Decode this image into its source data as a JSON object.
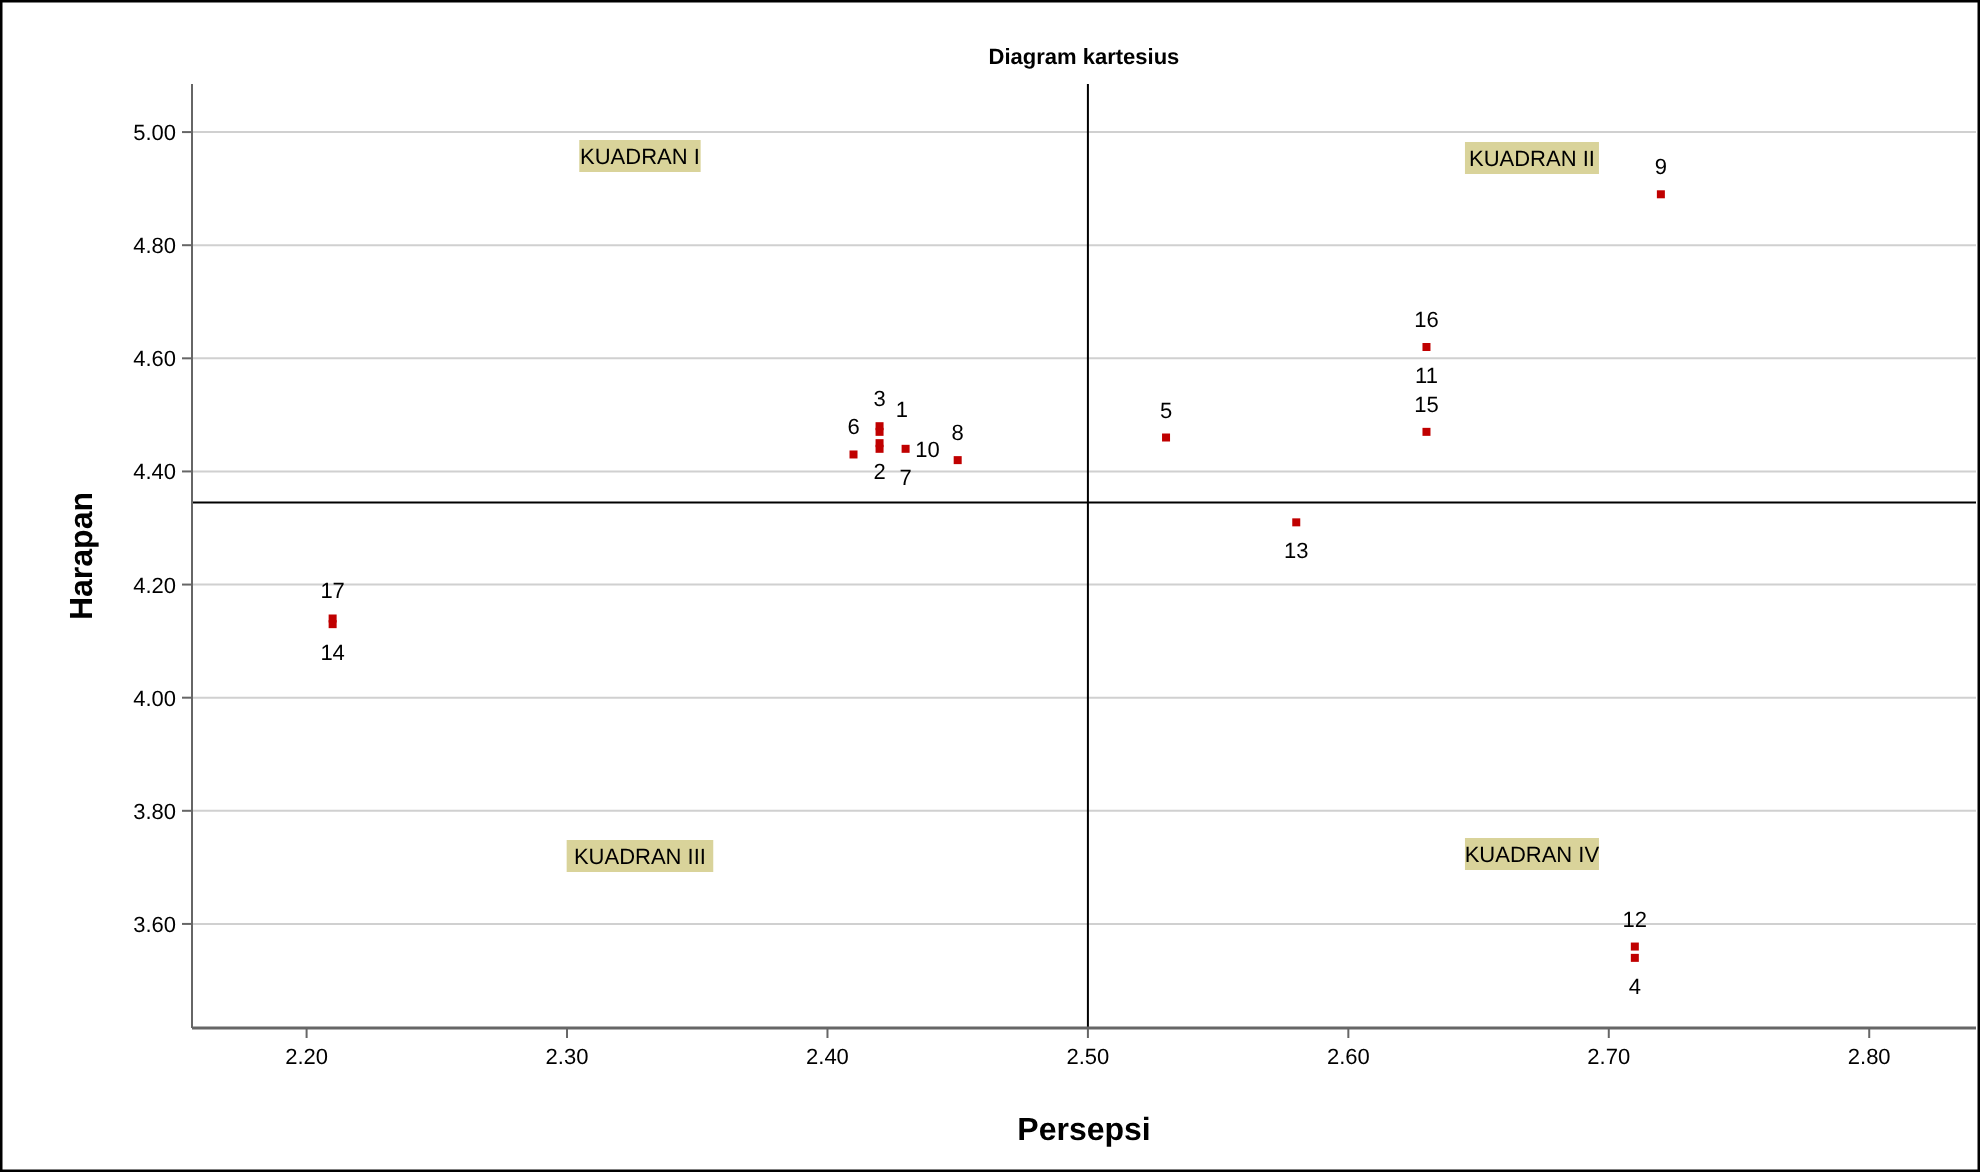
{
  "chart_data": {
    "type": "scatter",
    "title": "Diagram kartesius",
    "xlabel": "Persepsi",
    "ylabel": "Harapan",
    "series": [
      {
        "color": "#c00000",
        "x": [
          2.72,
          2.63,
          2.63,
          2.53,
          2.58,
          2.71,
          2.71,
          2.21,
          2.21,
          2.41,
          2.42,
          2.42,
          2.42,
          2.42,
          2.43,
          2.45
        ],
        "values": [
          4.89,
          4.62,
          4.47,
          4.46,
          4.31,
          3.56,
          3.54,
          4.14,
          4.13,
          4.43,
          4.48,
          4.47,
          4.45,
          4.44,
          4.44,
          4.42
        ]
      }
    ],
    "marker": "square",
    "grid": "y",
    "xlim": [
      2.156,
      2.841
    ],
    "ylim": [
      3.416,
      5.085
    ],
    "xticks": [
      {
        "value": 2.2,
        "label": "2.20"
      },
      {
        "value": 2.3,
        "label": "2.30"
      },
      {
        "value": 2.4,
        "label": "2.40"
      },
      {
        "value": 2.5,
        "label": "2.50"
      },
      {
        "value": 2.6,
        "label": "2.60"
      },
      {
        "value": 2.7,
        "label": "2.70"
      },
      {
        "value": 2.8,
        "label": "2.80"
      }
    ],
    "yticks": [
      {
        "value": 3.6,
        "label": "3.60"
      },
      {
        "value": 3.8,
        "label": "3.80"
      },
      {
        "value": 4.0,
        "label": "4.00"
      },
      {
        "value": 4.2,
        "label": "4.20"
      },
      {
        "value": 4.4,
        "label": "4.40"
      },
      {
        "value": 4.6,
        "label": "4.60"
      },
      {
        "value": 4.8,
        "label": "4.80"
      },
      {
        "value": 5.0,
        "label": "5.00"
      }
    ],
    "ref_lines": [
      {
        "axis": "x",
        "value": 2.5,
        "color": "#000000"
      },
      {
        "axis": "y",
        "value": 4.345,
        "color": "#000000"
      }
    ],
    "annotations": [
      "KUADRAN I",
      "KUADRAN II",
      "KUADRAN III",
      "KUADRAN IV",
      {
        "text": "9",
        "x": 2.72,
        "y": 4.89
      },
      {
        "text": "16",
        "x": 2.63,
        "y": 4.62
      },
      {
        "text": "11",
        "x": 2.63,
        "y": 4.62
      },
      {
        "text": "15",
        "x": 2.63,
        "y": 4.47
      },
      {
        "text": "5",
        "x": 2.53,
        "y": 4.46
      },
      {
        "text": "13",
        "x": 2.58,
        "y": 4.31
      },
      {
        "text": "12",
        "x": 2.71,
        "y": 3.56
      },
      {
        "text": "4",
        "x": 2.71,
        "y": 3.54
      },
      {
        "text": "17",
        "x": 2.21,
        "y": 4.14
      },
      {
        "text": "14",
        "x": 2.21,
        "y": 4.13
      },
      {
        "text": "6",
        "x": 2.41,
        "y": 4.43
      },
      {
        "text": "3",
        "x": 2.42,
        "y": 4.48
      },
      {
        "text": "1",
        "x": 2.42,
        "y": 4.47
      },
      {
        "text": "2",
        "x": 2.42,
        "y": 4.45
      },
      {
        "text": "10",
        "x": 2.42,
        "y": 4.44
      },
      {
        "text": "7",
        "x": 2.43,
        "y": 4.44
      },
      {
        "text": "8",
        "x": 2.45,
        "y": 4.42
      }
    ]
  }
}
